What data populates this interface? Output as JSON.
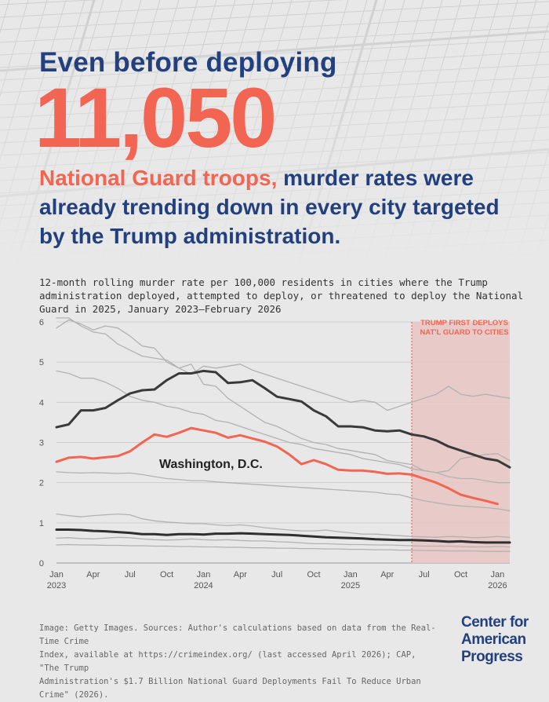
{
  "header": {
    "line1": "Even before deploying",
    "big_number": "11,050",
    "headline_accent": "National Guard troops,",
    "headline_rest": " murder rates were already trending down in every city targeted by the Trump administration."
  },
  "subtitle": "12-month rolling murder rate per 100,000 residents in cities where the Trump administration deployed, attempted to deploy, or threatened to deploy the National Guard in 2025, January 2023–February 2026",
  "chart_data": {
    "type": "line",
    "x": [
      "2023-01",
      "2023-02",
      "2023-03",
      "2023-04",
      "2023-05",
      "2023-06",
      "2023-07",
      "2023-08",
      "2023-09",
      "2023-10",
      "2023-11",
      "2023-12",
      "2024-01",
      "2024-02",
      "2024-03",
      "2024-04",
      "2024-05",
      "2024-06",
      "2024-07",
      "2024-08",
      "2024-09",
      "2024-10",
      "2024-11",
      "2024-12",
      "2025-01",
      "2025-02",
      "2025-03",
      "2025-04",
      "2025-05",
      "2025-06",
      "2025-07",
      "2025-08",
      "2025-09",
      "2025-10",
      "2025-11",
      "2025-12",
      "2026-01",
      "2026-02"
    ],
    "x_tick_labels": [
      "Jan",
      "Apr",
      "Jul",
      "Oct",
      "Jan",
      "Apr",
      "Jul",
      "Oct",
      "Jan",
      "Apr",
      "Jul",
      "Oct",
      "Jan"
    ],
    "x_year_labels": [
      "2023",
      "2024",
      "2025",
      "2026"
    ],
    "ylim": [
      0,
      6
    ],
    "y_ticks": [
      0,
      1,
      2,
      3,
      4,
      5,
      6
    ],
    "grid": true,
    "series": [
      {
        "name": "Washington, D.C.",
        "color": "#f26552",
        "emphasis": "highlight",
        "values": [
          2.52,
          2.62,
          2.64,
          2.6,
          2.63,
          2.66,
          2.78,
          3.0,
          3.2,
          3.14,
          3.24,
          3.36,
          3.3,
          3.24,
          3.12,
          3.18,
          3.1,
          3.02,
          2.9,
          2.7,
          2.46,
          2.56,
          2.46,
          2.32,
          2.3,
          2.3,
          2.27,
          2.22,
          2.23,
          2.2,
          2.1,
          2.0,
          1.86,
          1.7,
          1.62,
          1.55,
          1.47,
          null
        ]
      },
      {
        "color": "#3a3a3a",
        "emphasis": "dark",
        "values": [
          3.38,
          3.45,
          3.8,
          3.8,
          3.86,
          4.05,
          4.22,
          4.3,
          4.32,
          4.55,
          4.72,
          4.72,
          4.78,
          4.75,
          4.48,
          4.5,
          4.55,
          4.35,
          4.14,
          4.08,
          4.02,
          3.8,
          3.65,
          3.4,
          3.4,
          3.38,
          3.3,
          3.28,
          3.3,
          3.2,
          3.15,
          3.05,
          2.9,
          2.8,
          2.7,
          2.6,
          2.55,
          2.38
        ]
      },
      {
        "color": "#2f2f2f",
        "emphasis": "dark",
        "values": [
          0.83,
          0.83,
          0.82,
          0.8,
          0.79,
          0.77,
          0.75,
          0.72,
          0.72,
          0.7,
          0.72,
          0.72,
          0.71,
          0.73,
          0.73,
          0.74,
          0.73,
          0.72,
          0.71,
          0.7,
          0.68,
          0.66,
          0.64,
          0.63,
          0.62,
          0.61,
          0.59,
          0.58,
          0.57,
          0.57,
          0.56,
          0.55,
          0.53,
          0.54,
          0.52,
          0.51,
          0.51,
          0.51
        ]
      },
      {
        "color": "#b2b2b2",
        "emphasis": "context",
        "values": [
          5.85,
          6.05,
          5.95,
          5.8,
          5.9,
          5.85,
          5.65,
          5.4,
          5.35,
          5.0,
          4.85,
          4.7,
          4.9,
          4.85,
          4.9,
          4.95,
          4.8,
          4.7,
          4.6,
          4.5,
          4.4,
          4.3,
          4.2,
          4.1,
          4.0,
          4.05,
          4.0,
          3.8,
          3.9,
          4.0,
          4.1,
          4.2,
          4.4,
          4.2,
          4.15,
          4.2,
          4.15,
          4.1
        ]
      },
      {
        "color": "#b2b2b2",
        "emphasis": "context",
        "values": [
          6.1,
          6.1,
          5.9,
          5.75,
          5.7,
          5.45,
          5.3,
          5.15,
          5.1,
          5.05,
          4.85,
          4.95,
          4.45,
          4.4,
          4.1,
          3.9,
          3.7,
          3.5,
          3.4,
          3.25,
          3.1,
          3.0,
          2.95,
          2.85,
          2.8,
          2.75,
          2.7,
          2.55,
          2.5,
          2.45,
          2.3,
          2.25,
          2.3,
          2.6,
          2.65,
          2.7,
          2.72,
          2.55
        ]
      },
      {
        "color": "#b2b2b2",
        "emphasis": "context",
        "values": [
          4.78,
          4.72,
          4.6,
          4.6,
          4.5,
          4.35,
          4.15,
          4.05,
          4.0,
          3.9,
          3.85,
          3.75,
          3.7,
          3.55,
          3.5,
          3.4,
          3.3,
          3.2,
          3.1,
          3.0,
          2.95,
          2.85,
          2.8,
          2.75,
          2.7,
          2.6,
          2.55,
          2.5,
          2.45,
          2.35,
          2.3,
          2.25,
          2.15,
          2.1,
          2.1,
          2.05,
          2.0,
          2.0
        ]
      },
      {
        "color": "#b2b2b2",
        "emphasis": "context",
        "values": [
          2.27,
          2.25,
          2.24,
          2.25,
          2.24,
          2.23,
          2.24,
          2.2,
          2.15,
          2.1,
          2.08,
          2.05,
          2.05,
          2.02,
          2.0,
          1.98,
          1.96,
          1.94,
          1.92,
          1.9,
          1.88,
          1.86,
          1.84,
          1.82,
          1.8,
          1.78,
          1.76,
          1.72,
          1.7,
          1.62,
          1.55,
          1.5,
          1.45,
          1.42,
          1.4,
          1.38,
          1.35,
          1.3
        ]
      },
      {
        "color": "#b2b2b2",
        "emphasis": "context",
        "values": [
          1.22,
          1.18,
          1.15,
          1.18,
          1.2,
          1.22,
          1.2,
          1.1,
          1.05,
          1.02,
          1.0,
          0.98,
          0.98,
          0.95,
          0.93,
          0.95,
          0.92,
          0.88,
          0.85,
          0.82,
          0.8,
          0.8,
          0.82,
          0.78,
          0.75,
          0.72,
          0.72,
          0.7,
          0.68,
          0.66,
          0.65,
          0.64,
          0.66,
          0.65,
          0.63,
          0.64,
          0.66,
          0.64
        ]
      },
      {
        "color": "#b2b2b2",
        "emphasis": "context",
        "values": [
          0.62,
          0.63,
          0.61,
          0.6,
          0.62,
          0.64,
          0.63,
          0.6,
          0.58,
          0.57,
          0.58,
          0.6,
          0.58,
          0.57,
          0.58,
          0.56,
          0.55,
          0.55,
          0.53,
          0.52,
          0.5,
          0.48,
          0.48,
          0.47,
          0.46,
          0.46,
          0.45,
          0.45,
          0.44,
          0.43,
          0.42,
          0.42,
          0.42,
          0.41,
          0.4,
          0.4,
          0.41,
          0.4
        ]
      },
      {
        "color": "#b2b2b2",
        "emphasis": "context",
        "values": [
          0.45,
          0.46,
          0.45,
          0.45,
          0.44,
          0.44,
          0.43,
          0.43,
          0.42,
          0.42,
          0.41,
          0.41,
          0.4,
          0.4,
          0.39,
          0.39,
          0.38,
          0.38,
          0.37,
          0.37,
          0.36,
          0.36,
          0.35,
          0.35,
          0.34,
          0.34,
          0.33,
          0.33,
          0.32,
          0.32,
          0.31,
          0.31,
          0.3,
          0.3,
          0.3,
          0.29,
          0.29,
          0.29
        ]
      }
    ],
    "annotations": {
      "deployment_line": "Trump first deploys Nat'l Guard to cities",
      "deployment_label_lines": [
        "TRUMP FIRST DEPLOYS",
        "NAT'L GUARD TO CITIES"
      ],
      "deployment_start": "2025-06",
      "series_label": "Washington, D.C."
    }
  },
  "footer": {
    "source_lines": [
      "Image: Getty Images. Sources: Author's calculations based on data from the Real-Time Crime",
      "Index, available at https://crimeindex.org/ (last accessed April 2026); CAP, \"The Trump",
      "Administration's $1.7 Billion National Guard Deployments Fail To Reduce Urban Crime\" (2026)."
    ],
    "logo_lines": [
      "Center for",
      "American",
      "Progress"
    ]
  },
  "colors": {
    "navy": "#23407e",
    "coral": "#f26552",
    "background": "#e8e8e8",
    "shade": "#e8c4c2"
  }
}
